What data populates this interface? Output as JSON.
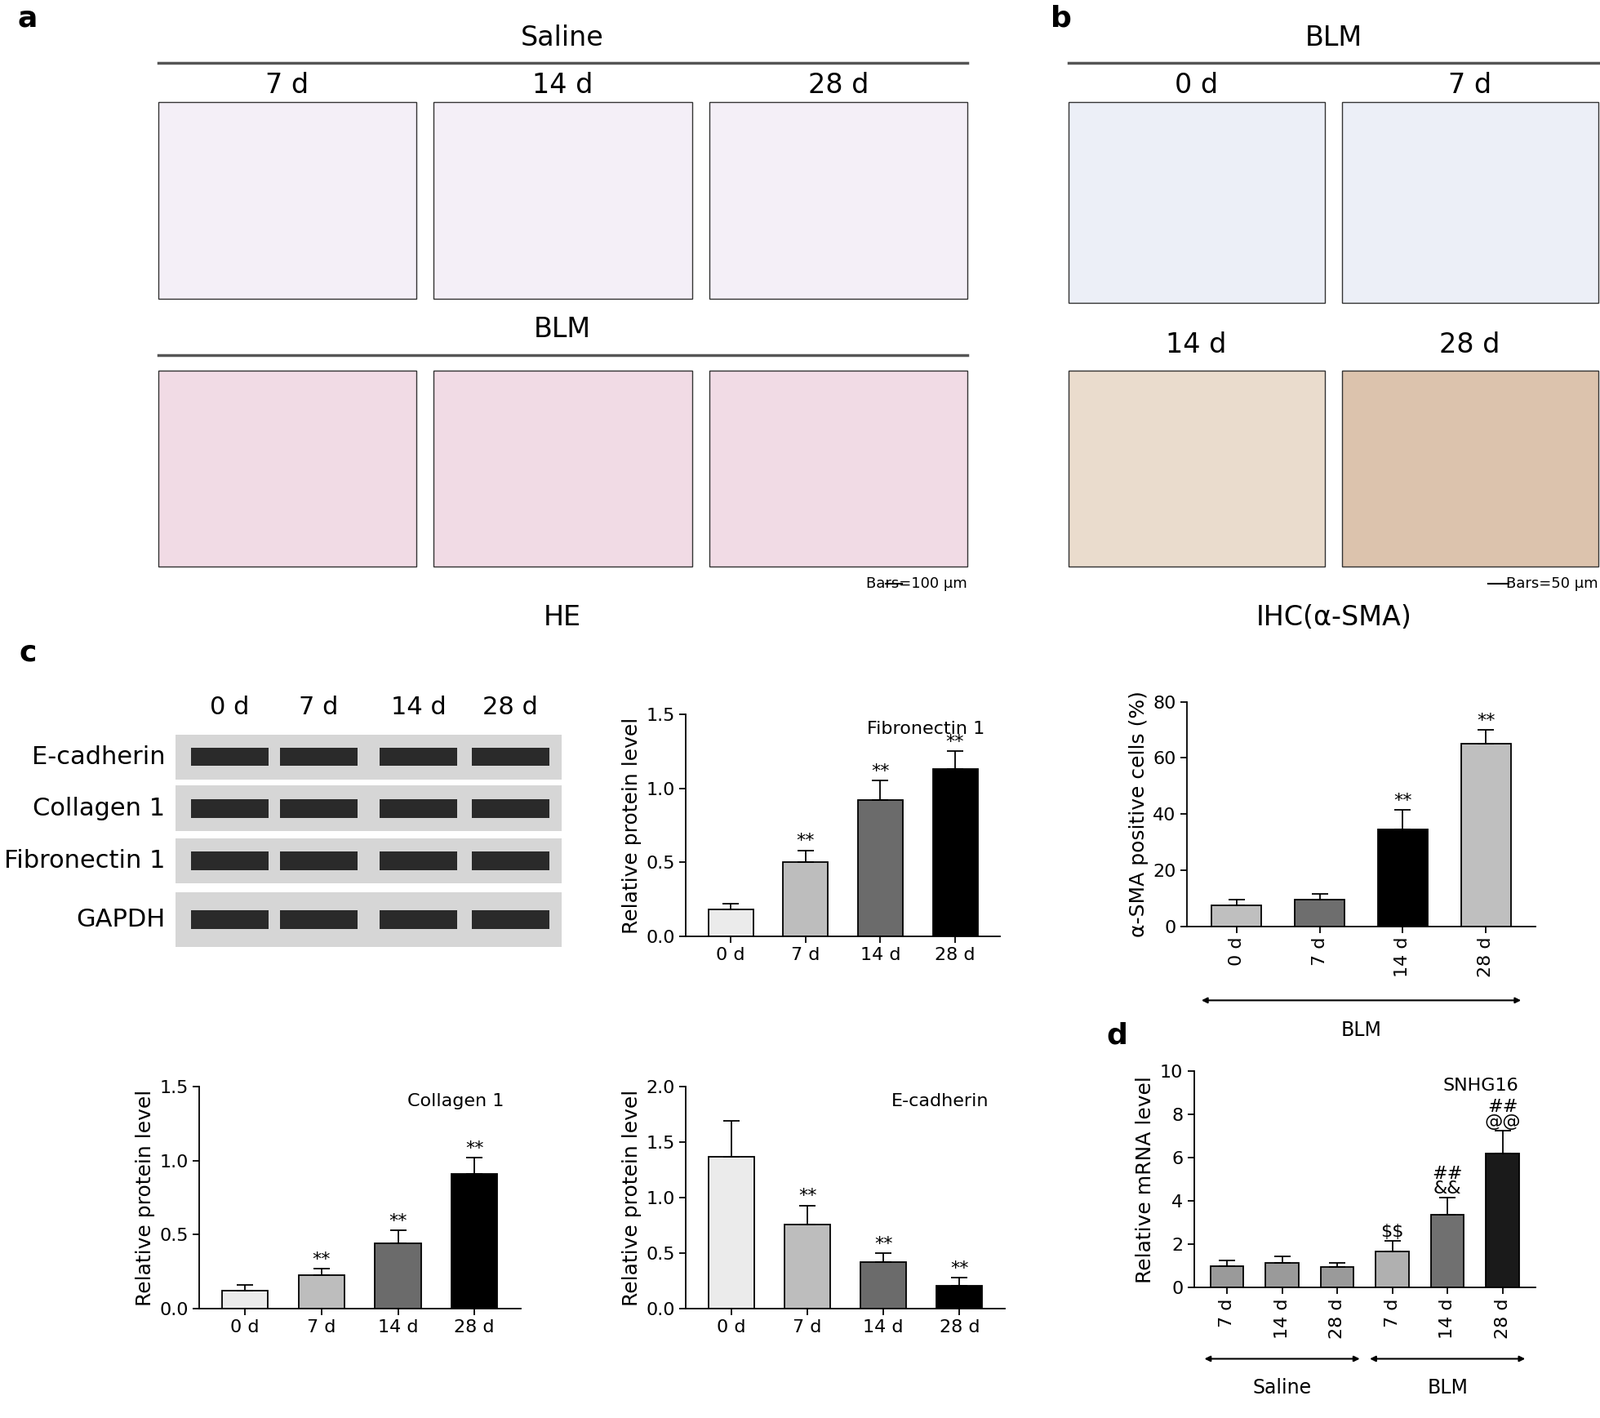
{
  "panels": {
    "a": {
      "letter": "a",
      "caption": "HE",
      "scale_bar": "Bars=100 μm",
      "rows": [
        {
          "heading": "Saline",
          "timepoints": [
            "7 d",
            "14 d",
            "28 d"
          ]
        },
        {
          "heading": "BLM",
          "timepoints": [
            null,
            null,
            null
          ]
        }
      ]
    },
    "b": {
      "letter": "b",
      "heading": "BLM",
      "caption": "IHC(α-SMA)",
      "scale_bar": "Bars=50 μm",
      "timepoints": [
        "0 d",
        "7 d",
        "14 d",
        "28 d"
      ]
    },
    "c": {
      "letter": "c",
      "blot": {
        "lanes": [
          "0 d",
          "7 d",
          "14 d",
          "28 d"
        ],
        "proteins": [
          "E-cadherin",
          "Collagen 1",
          "Fibronectin 1",
          "GAPDH"
        ]
      }
    },
    "d": {
      "letter": "d"
    }
  },
  "chart_data": [
    {
      "type": "bar",
      "title": "Fibronectin 1",
      "y_label": "Relative protein level",
      "categories": [
        "0 d",
        "7 d",
        "14 d",
        "28 d"
      ],
      "values": [
        0.18,
        0.5,
        0.92,
        1.13
      ],
      "errors": [
        0.04,
        0.08,
        0.13,
        0.12
      ],
      "annotations": [
        null,
        "**",
        "**",
        "**"
      ],
      "colors": [
        "#ebebeb",
        "#bdbdbd",
        "#6b6b6b",
        "#000000"
      ],
      "ylim": [
        0.0,
        1.5
      ],
      "yticks": [
        0.0,
        0.5,
        1.0,
        1.5
      ]
    },
    {
      "type": "bar",
      "y_label": "α-SMA positive cells (%)",
      "categories": [
        "0 d",
        "7 d",
        "14 d",
        "28 d"
      ],
      "values": [
        7.5,
        9.5,
        34.5,
        65
      ],
      "errors": [
        2,
        2,
        7,
        5
      ],
      "annotations": [
        null,
        null,
        "**",
        "**"
      ],
      "colors": [
        "#bfbfbf",
        "#6e6e6e",
        "#000000",
        "#bfbfbf"
      ],
      "ylim": [
        0,
        80
      ],
      "yticks": [
        0,
        20,
        40,
        60,
        80
      ],
      "groups": [
        {
          "name": "BLM",
          "span": 4
        }
      ]
    },
    {
      "type": "bar",
      "title": "Collagen 1",
      "y_label": "Relative protein level",
      "categories": [
        "0 d",
        "7 d",
        "14 d",
        "28 d"
      ],
      "values": [
        0.12,
        0.23,
        0.44,
        0.91
      ],
      "errors": [
        0.04,
        0.04,
        0.09,
        0.11
      ],
      "annotations": [
        null,
        "**",
        "**",
        "**"
      ],
      "colors": [
        "#ebebeb",
        "#bdbdbd",
        "#6b6b6b",
        "#000000"
      ],
      "ylim": [
        0.0,
        1.5
      ],
      "yticks": [
        0.0,
        0.5,
        1.0,
        1.5
      ]
    },
    {
      "type": "bar",
      "title": "E-cadherin",
      "y_label": "Relative protein level",
      "categories": [
        "0 d",
        "7 d",
        "14 d",
        "28 d"
      ],
      "values": [
        1.37,
        0.76,
        0.42,
        0.21
      ],
      "errors": [
        0.32,
        0.17,
        0.08,
        0.07
      ],
      "annotations": [
        null,
        "**",
        "**",
        "**"
      ],
      "colors": [
        "#ebebeb",
        "#bdbdbd",
        "#6b6b6b",
        "#000000"
      ],
      "ylim": [
        0.0,
        2.0
      ],
      "yticks": [
        0.0,
        0.5,
        1.0,
        1.5,
        2.0
      ]
    },
    {
      "type": "bar",
      "title": "SNHG16",
      "y_label": "Relative mRNA level",
      "categories": [
        "7 d",
        "14 d",
        "28 d",
        "7 d",
        "14 d",
        "28 d"
      ],
      "values": [
        1.0,
        1.15,
        0.95,
        1.65,
        3.35,
        6.2
      ],
      "errors": [
        0.25,
        0.3,
        0.2,
        0.5,
        0.8,
        1.05
      ],
      "annotations": [
        null,
        null,
        null,
        "$$",
        "##\n&&",
        "##\n@@"
      ],
      "colors": [
        "#9a9a9a",
        "#9a9a9a",
        "#9a9a9a",
        "#b0b0b0",
        "#707070",
        "#1a1a1a"
      ],
      "ylim": [
        0,
        10
      ],
      "yticks": [
        0,
        2,
        4,
        6,
        8,
        10
      ],
      "groups": [
        {
          "name": "Saline",
          "span": 3
        },
        {
          "name": "BLM",
          "span": 3
        }
      ]
    }
  ]
}
